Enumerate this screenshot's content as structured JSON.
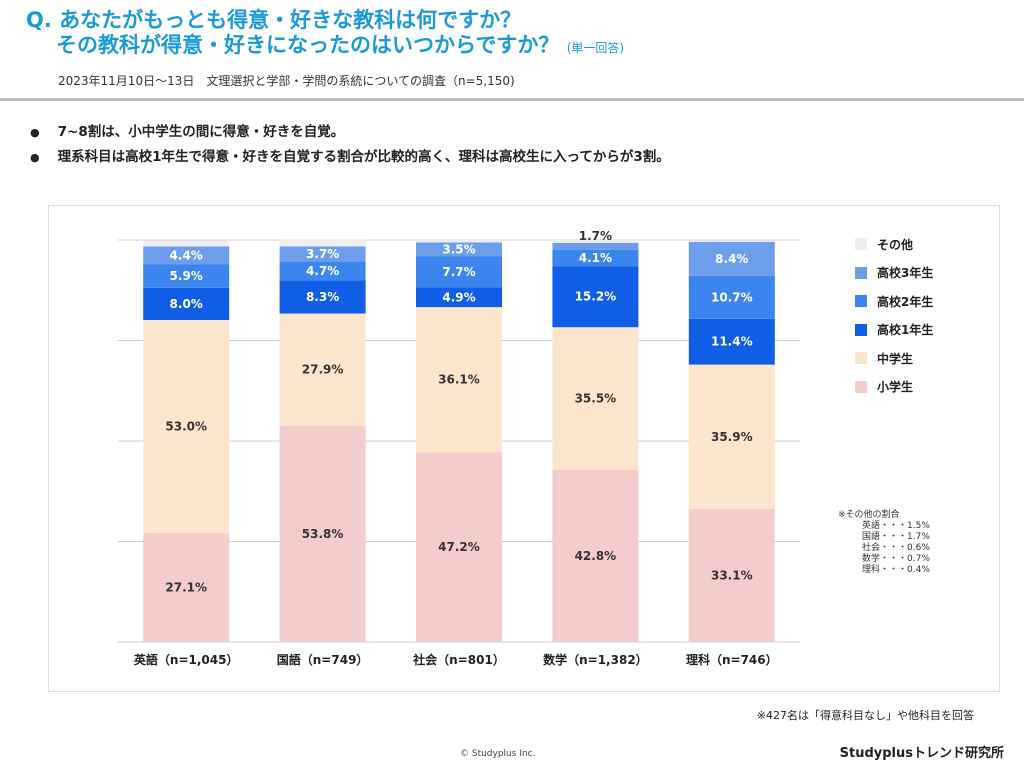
{
  "title": {
    "q": "Q.",
    "line1": "あなたがもっとも得意・好きな教科は何ですか？",
    "line2": "その教科が得意・好きになったのはいつからですか？",
    "answer_type": "(単一回答)"
  },
  "subtitle": "2023年11月10日〜13日　文理選択と学部・学問の系統についての調査（n=5,150)",
  "bullets": [
    "7~8割は、小中学生の間に得意・好きを自覚。",
    "理系科目は高校1年生で得意・好きを自覚する割合が比較的高く、理科は高校生に入ってからが3割。"
  ],
  "chart_data": {
    "type": "bar",
    "stacked": true,
    "ylim": [
      0,
      100
    ],
    "grid": true,
    "legend_position": "right",
    "categories": [
      "英語（n=1,045）",
      "国語（n=749）",
      "社会（n=801）",
      "数学（n=1,382）",
      "理科（n=746）"
    ],
    "series": [
      {
        "name": "小学生",
        "color": "#f4cccc",
        "values": [
          27.1,
          53.8,
          47.2,
          42.8,
          33.1
        ]
      },
      {
        "name": "中学生",
        "color": "#fce5cd",
        "values": [
          53.0,
          27.9,
          36.1,
          35.5,
          35.9
        ]
      },
      {
        "name": "高校1年生",
        "color": "#105ee6",
        "values": [
          8.0,
          8.3,
          4.9,
          15.2,
          11.4
        ]
      },
      {
        "name": "高校2年生",
        "color": "#3d85ee",
        "values": [
          5.9,
          4.7,
          7.7,
          4.1,
          10.7
        ]
      },
      {
        "name": "高校3年生",
        "color": "#6d9eeb",
        "values": [
          4.4,
          3.7,
          3.5,
          1.7,
          8.4
        ]
      },
      {
        "name": "その他",
        "color": "#eeeeee",
        "values": [
          1.5,
          1.7,
          0.6,
          0.7,
          0.4
        ]
      }
    ],
    "data_labels": true
  },
  "other_note": {
    "title": "※その他の割合",
    "rows": [
      "英語・・・1.5%",
      "国語・・・1.7%",
      "社会・・・0.6%",
      "数学・・・0.7%",
      "理科・・・0.4%"
    ]
  },
  "footnote": "※427名は「得意科目なし」や他科目を回答",
  "copyright": "© Studyplus Inc.",
  "brand": "Studyplusトレンド研究所"
}
